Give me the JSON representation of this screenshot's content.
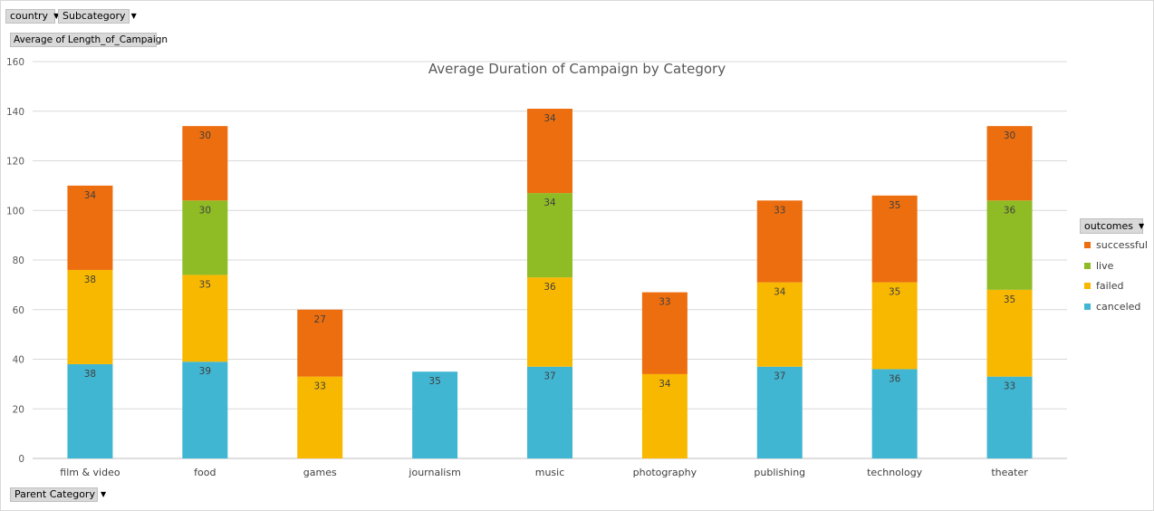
{
  "pivot": {
    "filters": [
      {
        "label": "country"
      },
      {
        "label": "Subcategory"
      }
    ],
    "value_field": "Average of Length_of_Campaign",
    "axis_field": "Parent Category",
    "legend_field": "outcomes"
  },
  "colors": {
    "successful": "#ed6e0e",
    "live": "#8fbc25",
    "failed": "#f9b800",
    "canceled": "#41b6d2"
  },
  "chart_data": {
    "type": "bar",
    "stacked": true,
    "title": "Average Duration of Campaign  by Category",
    "xlabel": "",
    "ylabel": "",
    "ylim": [
      0,
      160
    ],
    "yticks": [
      0,
      20,
      40,
      60,
      80,
      100,
      120,
      140,
      160
    ],
    "grid": true,
    "legend_position": "right",
    "categories": [
      "film & video",
      "food",
      "games",
      "journalism",
      "music",
      "photography",
      "publishing",
      "technology",
      "theater"
    ],
    "series": [
      {
        "name": "canceled",
        "values": [
          38,
          39,
          null,
          35,
          37,
          null,
          37,
          36,
          33
        ],
        "labels": [
          "38",
          "39",
          "",
          "35",
          "37",
          "",
          "37",
          "36",
          "33"
        ]
      },
      {
        "name": "failed",
        "values": [
          38,
          35,
          33,
          null,
          36,
          34,
          34,
          35,
          35
        ],
        "labels": [
          "38",
          "35",
          "33",
          "",
          "36",
          "34",
          "34",
          "35",
          "35"
        ]
      },
      {
        "name": "live",
        "values": [
          null,
          30,
          null,
          null,
          34,
          null,
          null,
          null,
          36
        ],
        "labels": [
          "",
          "30",
          "",
          "",
          "34",
          "",
          "",
          "",
          "36"
        ]
      },
      {
        "name": "successful",
        "values": [
          34,
          30,
          27,
          null,
          34,
          33,
          33,
          35,
          30
        ],
        "labels": [
          "34",
          "30",
          "27",
          "",
          "34",
          "33",
          "33",
          "35",
          "30"
        ]
      }
    ],
    "legend_order": [
      "successful",
      "live",
      "failed",
      "canceled"
    ]
  }
}
